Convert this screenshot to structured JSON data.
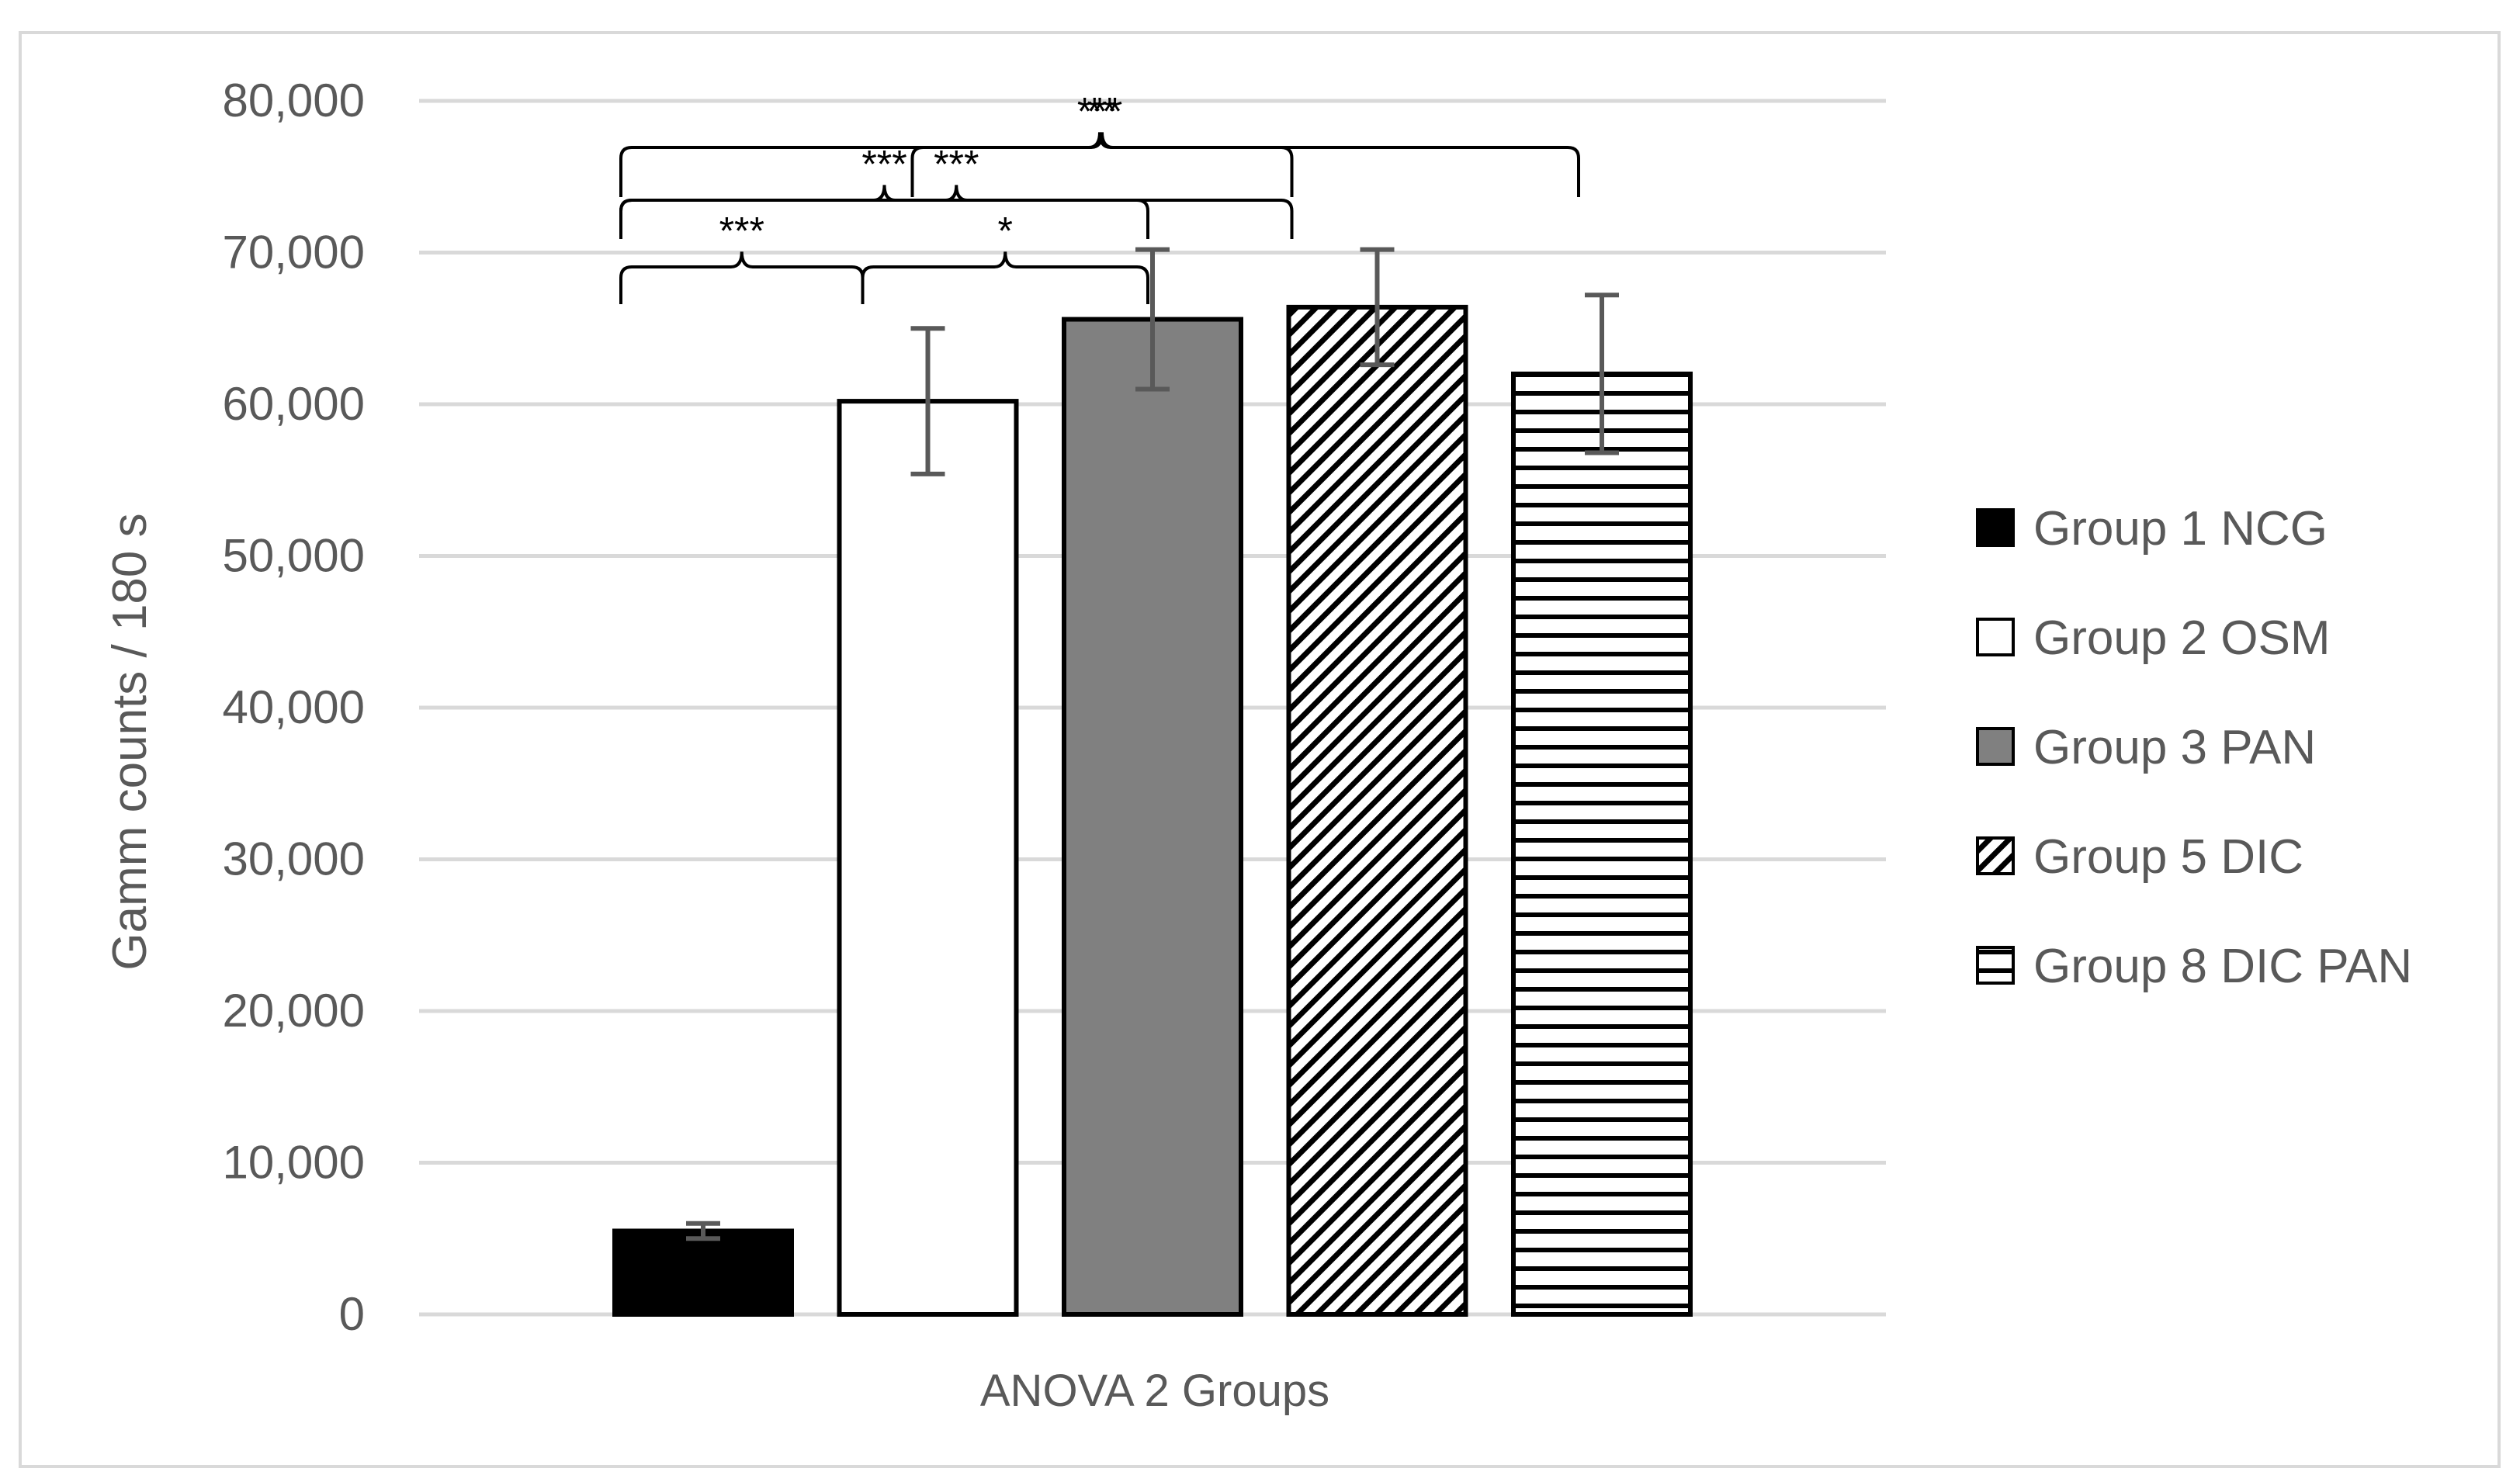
{
  "chart_data": {
    "type": "bar",
    "title": "",
    "xlabel": "ANOVA 2 Groups",
    "ylabel": "Gamm counts / 180 s",
    "categories": [
      "ANOVA 2 Groups"
    ],
    "ylim": [
      0,
      80000
    ],
    "yticks": [
      0,
      10000,
      20000,
      30000,
      40000,
      50000,
      60000,
      70000,
      80000
    ],
    "ytick_labels": [
      "0",
      "10,000",
      "20,000",
      "30,000",
      "40,000",
      "50,000",
      "60,000",
      "70,000",
      "80,000"
    ],
    "grid": true,
    "legend_position": "right",
    "series": [
      {
        "name": "Group 1 NCG",
        "values": [
          5500
        ],
        "error": [
          500
        ],
        "fill": "solid",
        "color": "#000000"
      },
      {
        "name": "Group 2 OSM",
        "values": [
          60200
        ],
        "error": [
          4800
        ],
        "fill": "solid",
        "color": "#ffffff"
      },
      {
        "name": "Group 3 PAN",
        "values": [
          65600
        ],
        "error": [
          4600
        ],
        "fill": "solid",
        "color": "#808080"
      },
      {
        "name": "Group 5 DIC",
        "values": [
          66400
        ],
        "error": [
          3800
        ],
        "fill": "diagonal-hatch",
        "color": "#000000"
      },
      {
        "name": "Group 8 DIC PAN",
        "values": [
          62000
        ],
        "error": [
          5200
        ],
        "fill": "horizontal-hatch",
        "color": "#000000"
      }
    ],
    "significance": [
      {
        "from": 0,
        "to": 1,
        "label": "***"
      },
      {
        "from": 1,
        "to": 2,
        "label": "*"
      },
      {
        "from": 0,
        "to": 2,
        "label": "***"
      },
      {
        "from": 1,
        "to": 3,
        "label": "***"
      },
      {
        "from": 0,
        "to": 3,
        "label": "**"
      },
      {
        "from": 2,
        "to": 4,
        "label": "***"
      }
    ]
  }
}
